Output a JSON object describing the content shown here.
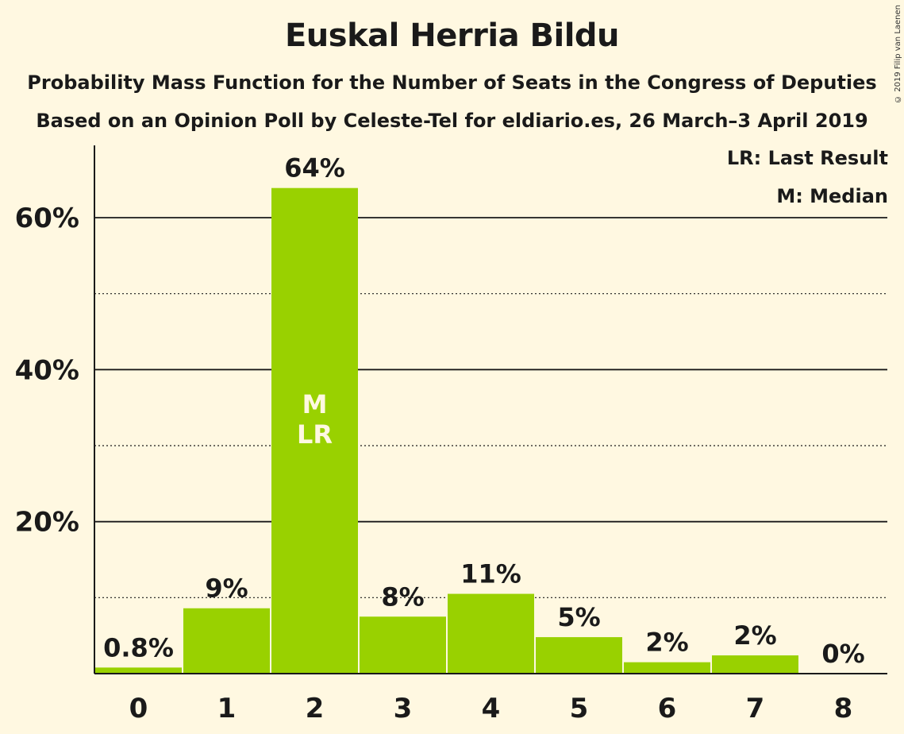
{
  "header": {
    "title": "Euskal Herria Bildu",
    "subtitle1": "Probability Mass Function for the Number of Seats in the Congress of Deputies",
    "subtitle2": "Based on an Opinion Poll by Celeste-Tel for eldiario.es, 26 March–3 April 2019",
    "copyright": "© 2019 Filip van Laenen"
  },
  "legend": {
    "last_result": "LR: Last Result",
    "median": "M: Median"
  },
  "colors": {
    "bar": "#99d100",
    "background": "#fff8e1",
    "bar_text": "#fff8e1"
  },
  "chart_data": {
    "type": "bar",
    "categories": [
      "0",
      "1",
      "2",
      "3",
      "4",
      "5",
      "6",
      "7",
      "8"
    ],
    "values": [
      0.8,
      8.6,
      63.9,
      7.5,
      10.5,
      4.8,
      1.5,
      2.4,
      0
    ],
    "data_labels": [
      "0.8%",
      "9%",
      "64%",
      "8%",
      "11%",
      "5%",
      "2%",
      "2%",
      "0%"
    ],
    "ylim": [
      0,
      70
    ],
    "yticks": [
      20,
      40,
      60
    ],
    "ytick_labels": [
      "20%",
      "40%",
      "60%"
    ],
    "minor_gridlines": [
      10,
      30,
      50
    ],
    "bar_annotations": [
      {
        "category": "2",
        "lines": [
          "M",
          "LR"
        ]
      }
    ],
    "grid": true
  }
}
